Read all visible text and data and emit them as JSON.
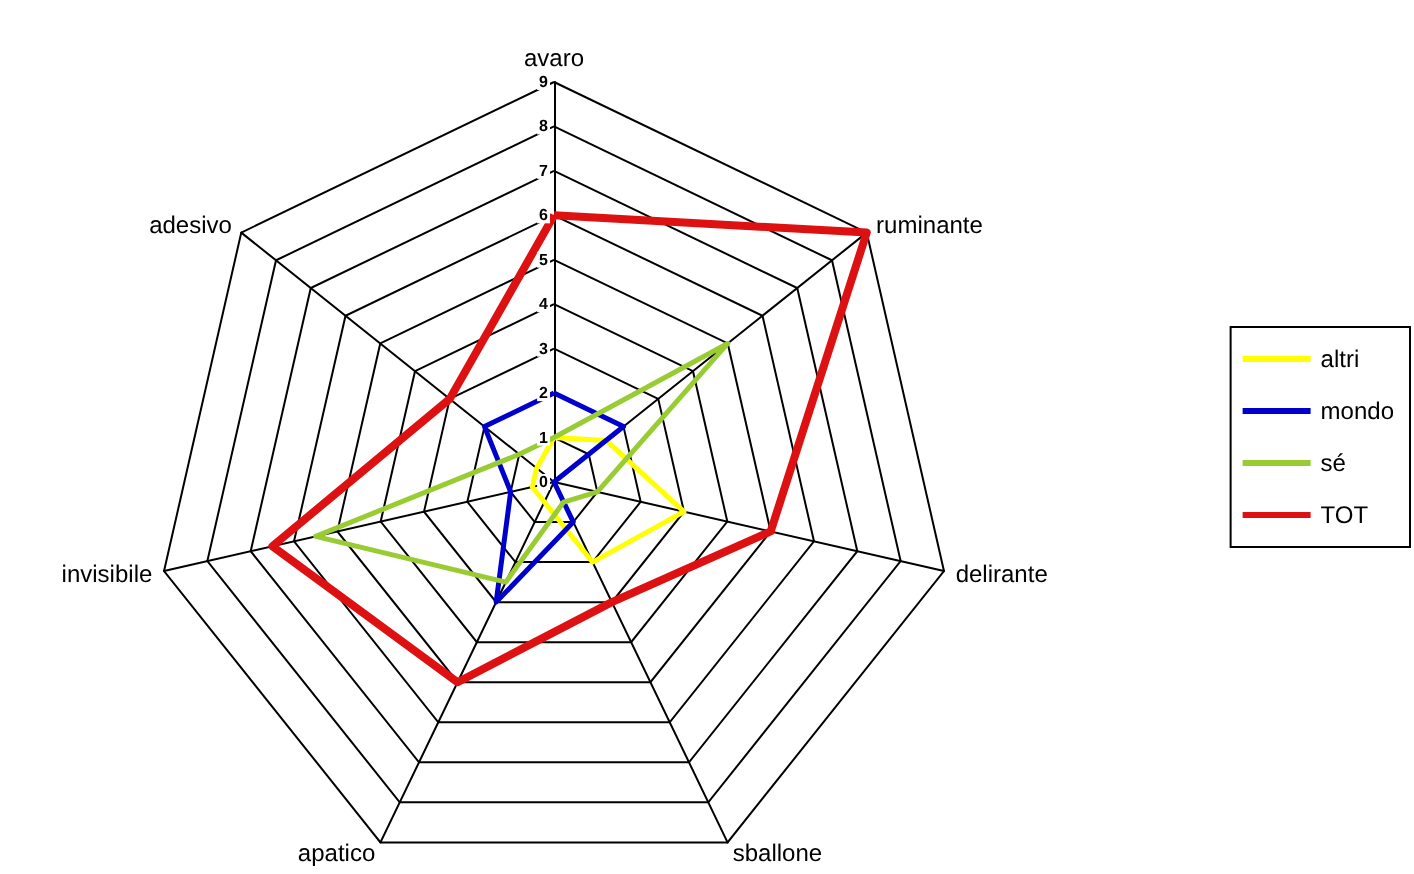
{
  "chart_data": {
    "type": "radar",
    "categories": [
      "avaro",
      "ruminante",
      "delirante",
      "sballone",
      "apatico",
      "invisibile",
      "adesivo"
    ],
    "ylim": [
      0,
      9
    ],
    "yticks": [
      0,
      1,
      2,
      3,
      4,
      5,
      6,
      7,
      8,
      9
    ],
    "legend": "right",
    "series": [
      {
        "name": "altri",
        "color": "#ffff00",
        "values": [
          1,
          1.5,
          3,
          2,
          0.5,
          0.5,
          0.5
        ]
      },
      {
        "name": "mondo",
        "color": "#0000cc",
        "values": [
          2,
          2,
          0,
          1,
          3,
          1,
          2
        ]
      },
      {
        "name": "sé",
        "color": "#99cc33",
        "values": [
          1,
          5,
          1,
          0.5,
          2.5,
          5.5,
          1
        ]
      },
      {
        "name": "TOT",
        "color": "#dd1111",
        "values": [
          6,
          9,
          5,
          3,
          5,
          6.5,
          3
        ]
      }
    ]
  }
}
